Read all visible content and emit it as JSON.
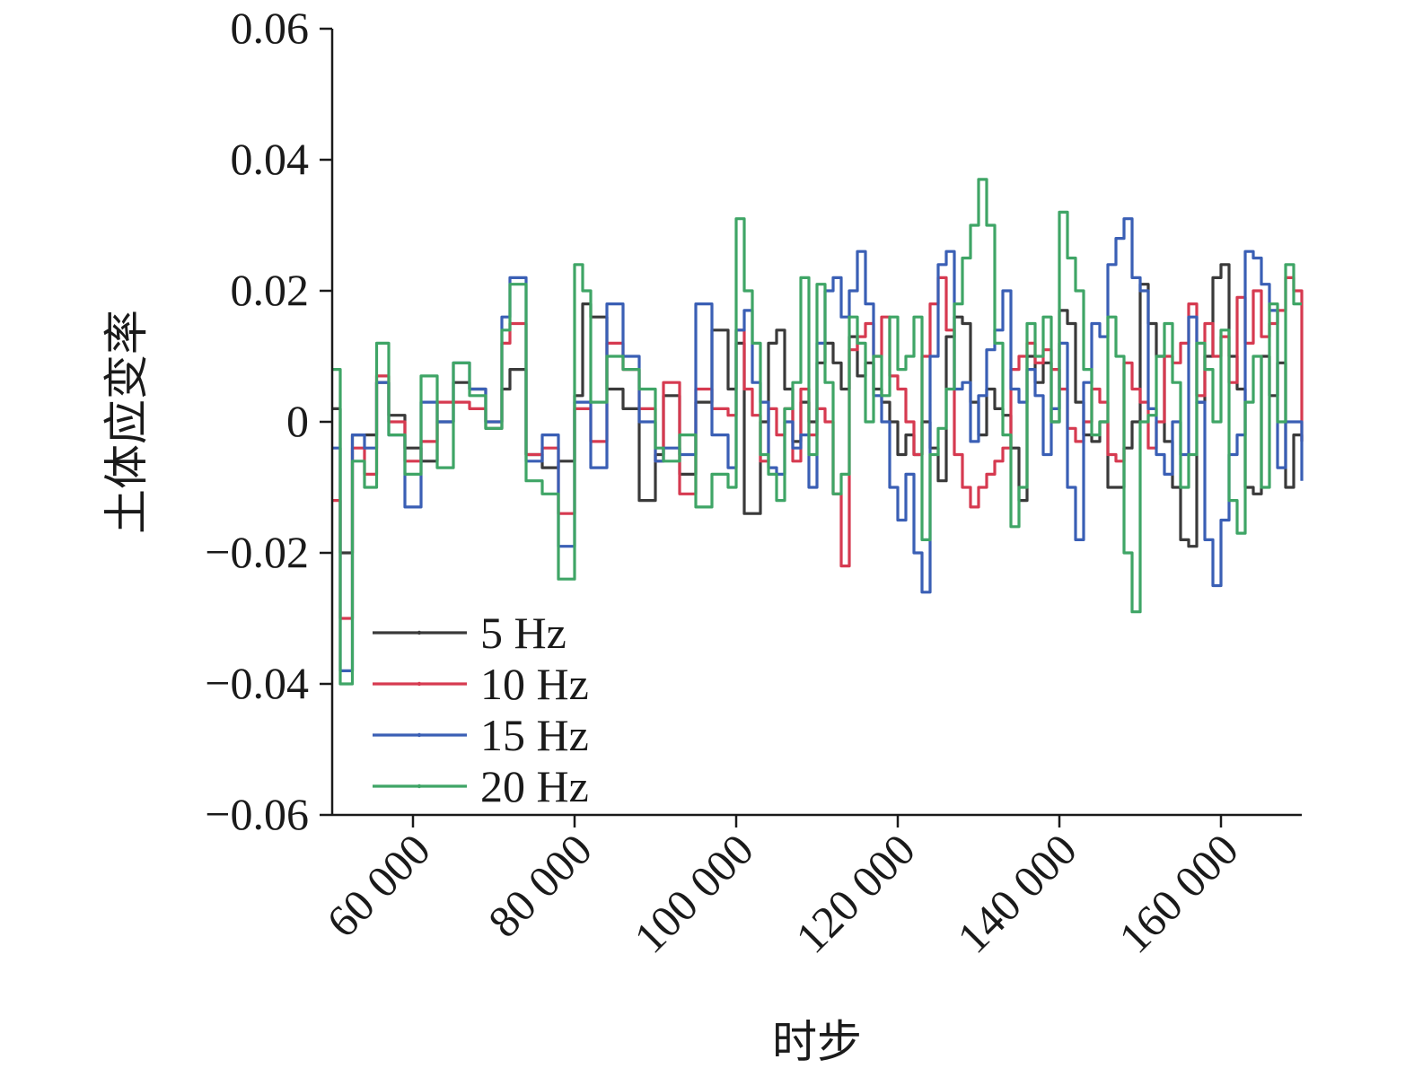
{
  "chart_data": {
    "type": "line",
    "title": "",
    "xlabel": "时步",
    "ylabel": "土体应变率",
    "xlim": [
      50000,
      170000
    ],
    "ylim": [
      -0.06,
      0.06
    ],
    "x_ticks": [
      60000,
      80000,
      100000,
      120000,
      140000,
      160000
    ],
    "x_tick_labels": [
      "60 000",
      "80 000",
      "100 000",
      "120 000",
      "140 000",
      "160 000"
    ],
    "y_ticks": [
      0.06,
      0.04,
      0.02,
      0,
      -0.02,
      -0.04,
      -0.06
    ],
    "y_tick_labels": [
      "0.06",
      "0.04",
      "0.02",
      "0",
      "−0.02",
      "−0.04",
      "−0.06"
    ],
    "legend_position": "bottom-left",
    "grid": false,
    "series": [
      {
        "name": "5 Hz",
        "color": "#3a3a3a",
        "x": [
          50000,
          51000,
          52500,
          54000,
          55500,
          57000,
          59000,
          61000,
          63000,
          65000,
          67000,
          69000,
          71000,
          72000,
          74000,
          76000,
          78000,
          80000,
          81000,
          82000,
          84000,
          86000,
          88000,
          90000,
          91000,
          93000,
          95000,
          97000,
          99000,
          100000,
          101000,
          102000,
          103000,
          104000,
          105000,
          106000,
          107000,
          108000,
          109000,
          110000,
          111000,
          112000,
          113000,
          114000,
          115000,
          116000,
          117000,
          118000,
          119000,
          120000,
          121000,
          122000,
          123000,
          124000,
          125000,
          126000,
          127000,
          128000,
          129000,
          130000,
          131000,
          132000,
          133000,
          134000,
          135000,
          136000,
          137000,
          138000,
          139000,
          140000,
          141000,
          142000,
          143000,
          144000,
          145000,
          146000,
          147000,
          148000,
          149000,
          150000,
          151000,
          152000,
          153000,
          154000,
          155000,
          156000,
          157000,
          158000,
          159000,
          160000,
          161000,
          162000,
          163000,
          164000,
          165000,
          166000,
          167000,
          168000,
          169000,
          170000
        ],
        "y": [
          0.002,
          -0.02,
          -0.002,
          -0.002,
          0.006,
          0.001,
          -0.004,
          -0.006,
          0.0,
          0.006,
          0.005,
          -0.001,
          0.005,
          0.008,
          -0.005,
          -0.007,
          -0.006,
          0.004,
          0.018,
          0.016,
          0.005,
          0.002,
          -0.012,
          -0.005,
          0.004,
          -0.008,
          0.003,
          0.014,
          0.005,
          0.012,
          -0.014,
          -0.014,
          0.0,
          0.012,
          0.014,
          0.005,
          -0.003,
          0.003,
          0.0,
          0.009,
          0.012,
          0.009,
          0.005,
          0.013,
          0.007,
          0.009,
          0.005,
          0.003,
          0.0,
          -0.005,
          -0.002,
          -0.005,
          0.0,
          -0.004,
          -0.009,
          0.013,
          0.016,
          0.015,
          0.003,
          -0.002,
          0.005,
          0.002,
          0.001,
          -0.004,
          -0.012,
          0.01,
          0.006,
          0.009,
          0.0,
          0.017,
          0.015,
          0.003,
          -0.002,
          -0.003,
          0.0,
          -0.01,
          -0.01,
          -0.004,
          0.0,
          0.021,
          0.015,
          0.01,
          -0.003,
          -0.01,
          -0.018,
          -0.019,
          0.003,
          0.01,
          0.022,
          0.024,
          0.01,
          0.005,
          -0.01,
          -0.011,
          0.01,
          0.004,
          0.009,
          -0.01,
          -0.002,
          -0.003
        ]
      },
      {
        "name": "10 Hz",
        "color": "#d63a50",
        "x": [
          50000,
          51000,
          52500,
          54000,
          55500,
          57000,
          59000,
          61000,
          63000,
          65000,
          67000,
          69000,
          71000,
          72000,
          74000,
          76000,
          78000,
          80000,
          81000,
          82000,
          84000,
          86000,
          88000,
          90000,
          91000,
          93000,
          95000,
          97000,
          99000,
          100000,
          101000,
          102000,
          103000,
          104000,
          105000,
          106000,
          107000,
          108000,
          109000,
          110000,
          111000,
          112000,
          113000,
          114000,
          115000,
          116000,
          117000,
          118000,
          119000,
          120000,
          121000,
          122000,
          123000,
          124000,
          125000,
          126000,
          127000,
          128000,
          129000,
          130000,
          131000,
          132000,
          133000,
          134000,
          135000,
          136000,
          137000,
          138000,
          139000,
          140000,
          141000,
          142000,
          143000,
          144000,
          145000,
          146000,
          147000,
          148000,
          149000,
          150000,
          151000,
          152000,
          153000,
          154000,
          155000,
          156000,
          157000,
          158000,
          159000,
          160000,
          161000,
          162000,
          163000,
          164000,
          165000,
          166000,
          167000,
          168000,
          169000,
          170000
        ],
        "y": [
          -0.012,
          -0.03,
          -0.004,
          -0.008,
          0.007,
          0.0,
          -0.006,
          -0.003,
          0.003,
          0.003,
          0.002,
          0.0,
          0.012,
          0.015,
          -0.005,
          -0.004,
          -0.014,
          0.002,
          0.002,
          -0.003,
          0.012,
          0.008,
          0.002,
          -0.006,
          0.006,
          -0.011,
          0.005,
          0.002,
          0.001,
          0.014,
          0.005,
          0.001,
          -0.006,
          0.002,
          -0.002,
          0.002,
          -0.006,
          0.005,
          -0.002,
          0.002,
          0.0,
          -0.011,
          -0.022,
          0.011,
          0.013,
          0.015,
          0.01,
          0.016,
          0.007,
          0.005,
          0.0,
          -0.005,
          0.01,
          0.018,
          0.022,
          0.014,
          -0.005,
          -0.01,
          -0.013,
          -0.01,
          -0.008,
          -0.006,
          -0.004,
          0.008,
          0.01,
          0.012,
          0.009,
          0.011,
          0.008,
          0.005,
          -0.001,
          -0.003,
          0.0,
          0.005,
          0.003,
          -0.005,
          -0.006,
          0.009,
          0.005,
          0.003,
          -0.004,
          0.0,
          0.01,
          0.009,
          0.012,
          0.018,
          0.004,
          0.015,
          0.01,
          0.013,
          0.006,
          0.019,
          0.012,
          0.02,
          0.013,
          0.015,
          0.017,
          0.022,
          0.02,
          -0.003
        ]
      },
      {
        "name": "15 Hz",
        "color": "#3a5fb5",
        "x": [
          50000,
          51000,
          52500,
          54000,
          55500,
          57000,
          59000,
          61000,
          63000,
          65000,
          67000,
          69000,
          71000,
          72000,
          74000,
          76000,
          78000,
          80000,
          81000,
          82000,
          84000,
          86000,
          88000,
          90000,
          91000,
          93000,
          95000,
          97000,
          99000,
          100000,
          101000,
          102000,
          103000,
          104000,
          105000,
          106000,
          107000,
          108000,
          109000,
          110000,
          111000,
          112000,
          113000,
          114000,
          115000,
          116000,
          117000,
          118000,
          119000,
          120000,
          121000,
          122000,
          123000,
          124000,
          125000,
          126000,
          127000,
          128000,
          129000,
          130000,
          131000,
          132000,
          133000,
          134000,
          135000,
          136000,
          137000,
          138000,
          139000,
          140000,
          141000,
          142000,
          143000,
          144000,
          145000,
          146000,
          147000,
          148000,
          149000,
          150000,
          151000,
          152000,
          153000,
          154000,
          155000,
          156000,
          157000,
          158000,
          159000,
          160000,
          161000,
          162000,
          163000,
          164000,
          165000,
          166000,
          167000,
          168000,
          169000,
          170000
        ],
        "y": [
          -0.004,
          -0.038,
          -0.002,
          -0.004,
          0.006,
          -0.002,
          -0.013,
          0.003,
          0.0,
          0.009,
          0.005,
          0.0,
          0.016,
          0.022,
          -0.006,
          -0.002,
          -0.019,
          0.003,
          0.003,
          -0.007,
          0.018,
          0.01,
          0.0,
          -0.006,
          -0.004,
          -0.005,
          0.018,
          -0.002,
          -0.007,
          0.014,
          0.017,
          0.006,
          0.003,
          -0.007,
          -0.008,
          0.0,
          -0.004,
          -0.002,
          -0.01,
          0.012,
          0.02,
          0.022,
          0.016,
          0.02,
          0.026,
          0.018,
          0.004,
          0.0,
          -0.01,
          -0.015,
          -0.008,
          -0.02,
          -0.026,
          0.01,
          0.024,
          0.026,
          0.005,
          0.006,
          -0.003,
          0.004,
          0.011,
          0.014,
          0.02,
          0.005,
          0.003,
          0.008,
          0.004,
          -0.005,
          0.002,
          0.012,
          -0.01,
          -0.018,
          0.006,
          0.015,
          0.013,
          0.024,
          0.028,
          0.031,
          0.022,
          0.02,
          0.002,
          -0.005,
          -0.008,
          0.0,
          -0.005,
          0.016,
          0.003,
          -0.018,
          -0.025,
          -0.015,
          -0.005,
          -0.002,
          0.026,
          0.025,
          0.021,
          0.017,
          -0.007,
          0.0,
          0.0,
          -0.009
        ]
      },
      {
        "name": "20 Hz",
        "color": "#3fa566",
        "x": [
          50000,
          51000,
          52500,
          54000,
          55500,
          57000,
          59000,
          61000,
          63000,
          65000,
          67000,
          69000,
          71000,
          72000,
          74000,
          76000,
          78000,
          80000,
          81000,
          82000,
          84000,
          86000,
          88000,
          90000,
          91000,
          93000,
          95000,
          97000,
          99000,
          100000,
          101000,
          102000,
          103000,
          104000,
          105000,
          106000,
          107000,
          108000,
          109000,
          110000,
          111000,
          112000,
          113000,
          114000,
          115000,
          116000,
          117000,
          118000,
          119000,
          120000,
          121000,
          122000,
          123000,
          124000,
          125000,
          126000,
          127000,
          128000,
          129000,
          130000,
          131000,
          132000,
          133000,
          134000,
          135000,
          136000,
          137000,
          138000,
          139000,
          140000,
          141000,
          142000,
          143000,
          144000,
          145000,
          146000,
          147000,
          148000,
          149000,
          150000,
          151000,
          152000,
          153000,
          154000,
          155000,
          156000,
          157000,
          158000,
          159000,
          160000,
          161000,
          162000,
          163000,
          164000,
          165000,
          166000,
          167000,
          168000,
          169000,
          170000
        ],
        "y": [
          0.008,
          -0.04,
          -0.006,
          -0.01,
          0.012,
          -0.002,
          -0.008,
          0.007,
          -0.007,
          0.009,
          0.004,
          -0.001,
          0.014,
          0.021,
          -0.009,
          -0.011,
          -0.024,
          0.024,
          0.02,
          0.003,
          0.01,
          0.008,
          0.005,
          -0.004,
          -0.006,
          -0.002,
          -0.013,
          -0.008,
          -0.01,
          0.031,
          0.02,
          0.012,
          -0.005,
          -0.008,
          -0.012,
          0.002,
          0.006,
          0.022,
          -0.005,
          0.021,
          0.006,
          -0.011,
          -0.008,
          0.016,
          0.012,
          0.0,
          0.01,
          0.004,
          0.016,
          0.008,
          0.01,
          0.016,
          -0.018,
          -0.005,
          -0.001,
          0.005,
          0.018,
          0.025,
          0.03,
          0.037,
          0.03,
          0.012,
          -0.002,
          -0.016,
          -0.01,
          0.015,
          0.01,
          0.016,
          0.0,
          0.032,
          0.025,
          0.02,
          0.008,
          -0.002,
          0.0,
          0.016,
          0.01,
          -0.02,
          -0.029,
          0.0,
          0.001,
          0.01,
          0.015,
          0.006,
          -0.01,
          -0.005,
          0.012,
          0.008,
          0.0,
          0.014,
          -0.012,
          -0.017,
          0.003,
          0.01,
          -0.01,
          0.018,
          0.0,
          0.024,
          0.018,
          0.018
        ]
      }
    ]
  }
}
